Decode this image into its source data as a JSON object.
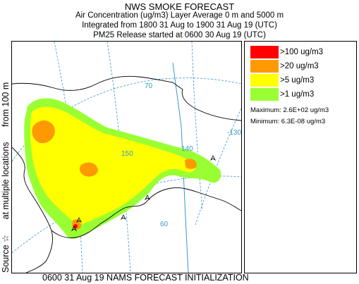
{
  "header": {
    "title": "NWS SMOKE FORECAST",
    "line2": "Air Concentration (ug/m3) Layer Average    0 m and  5000 m",
    "line3": "Integrated from 1800 31 Aug to 1900 31 Aug 19 (UTC)",
    "line4": "PM25 Release started at 0600 30 Aug 19 (UTC)"
  },
  "side_label": {
    "part1": "Source ☆",
    "part2": "at multiple locations",
    "part3": "from   100 m"
  },
  "footer": {
    "text": "0600 31 Aug 19 NAMS FORECAST INITIALIZATION"
  },
  "legend": {
    "items": [
      {
        "label": ">100 ug/m3",
        "color": "#ff0000"
      },
      {
        "label": ">20 ug/m3",
        "color": "#ff9900"
      },
      {
        "label": ">5 ug/m3",
        "color": "#ffff00"
      },
      {
        "label": ">1 ug/m3",
        "color": "#99ff33"
      }
    ],
    "maximum": "Maximum: 2.6E+02 ug/m3",
    "minimum": "Minimum: 6.3E-08 ug/m3"
  },
  "map": {
    "grid_labels": {
      "lat70": "70",
      "lon150": "150",
      "lon140": "140",
      "lon130": "-130",
      "lat60": "60"
    },
    "colors": {
      "land_outline": "#000000",
      "grid": "#3399cc",
      "gt100": "#ff0000",
      "gt20": "#ff9900",
      "gt5": "#ffff00",
      "gt1": "#99ff33"
    }
  }
}
